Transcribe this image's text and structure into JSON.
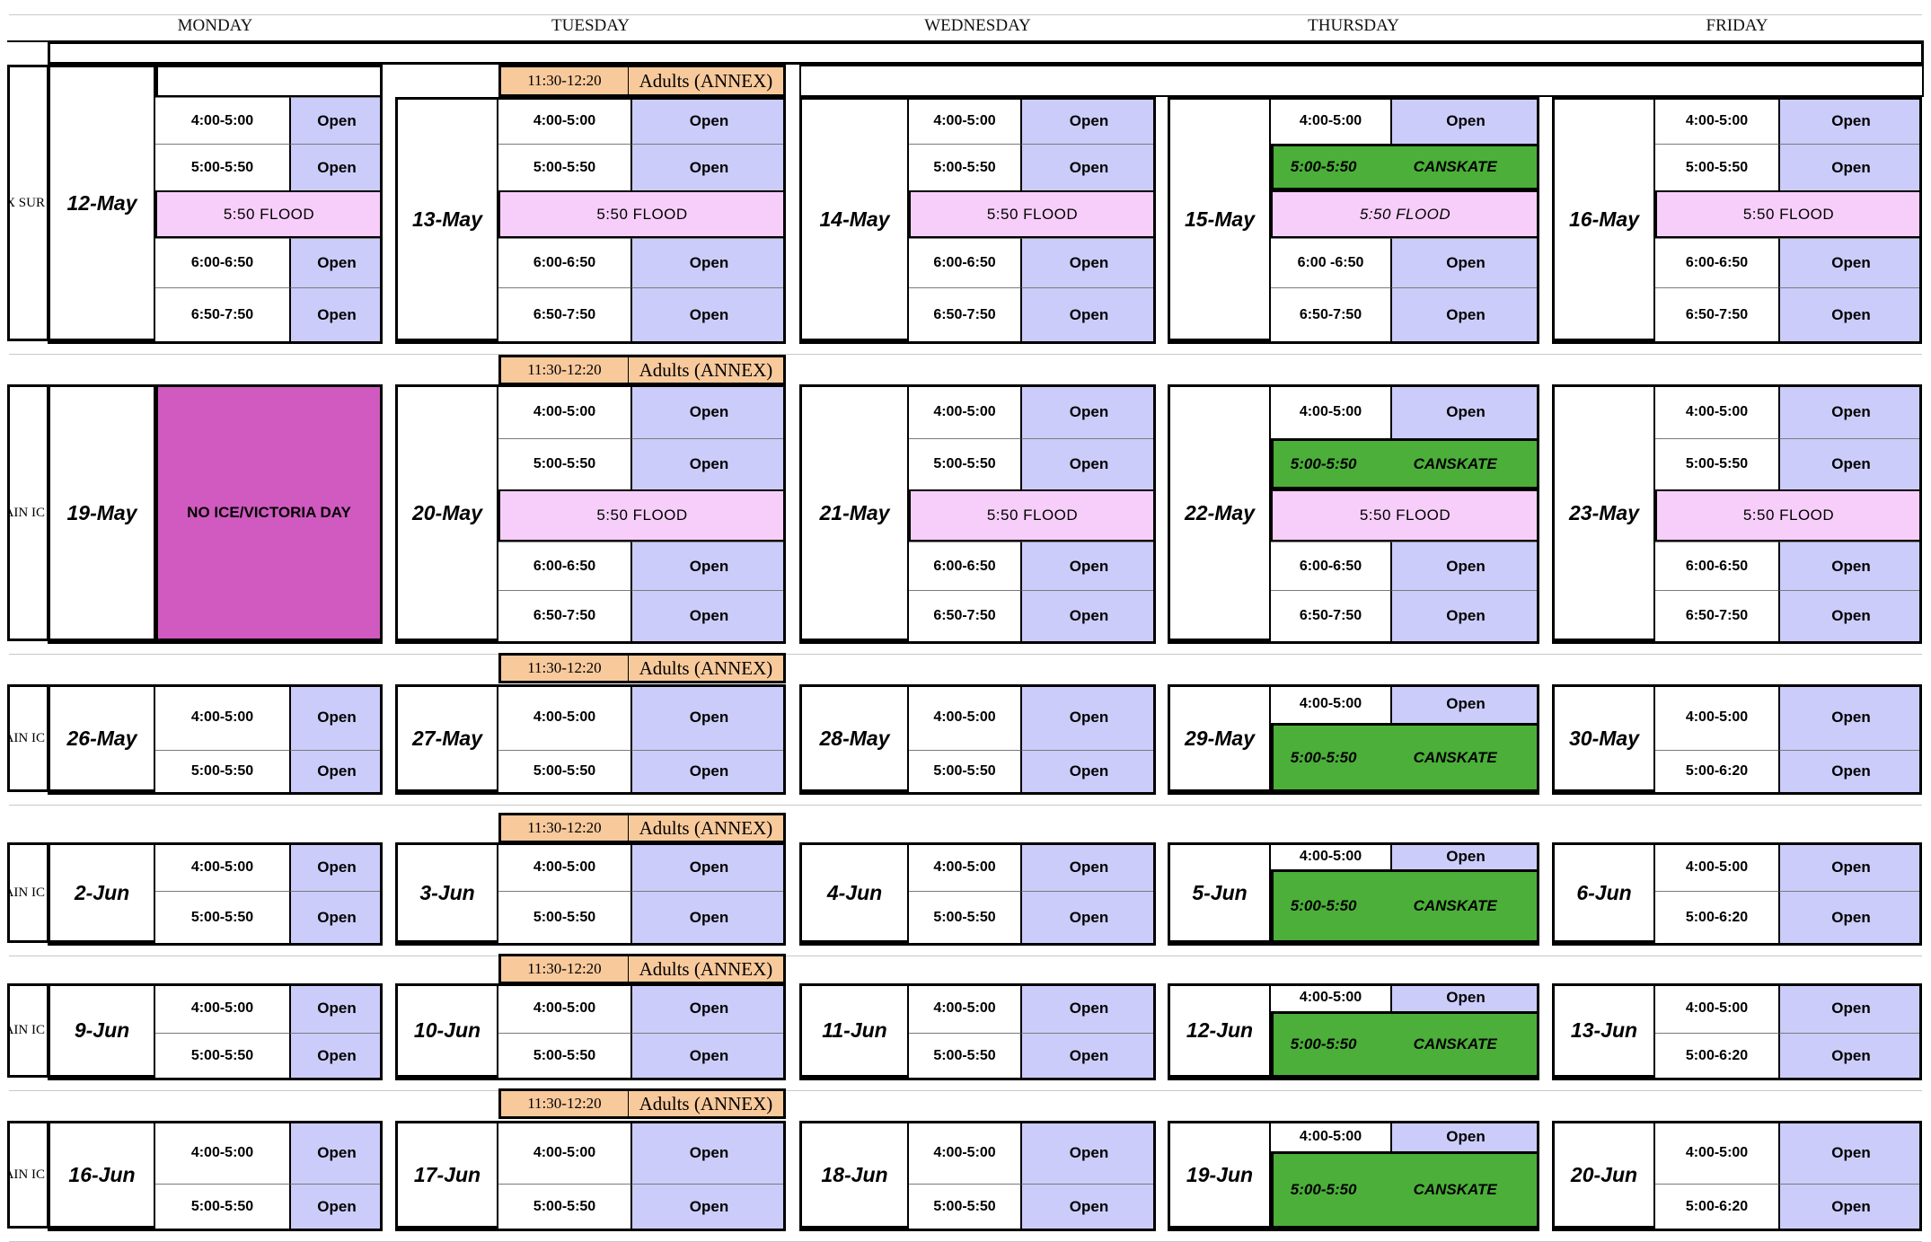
{
  "days": {
    "mon": "MONDAY",
    "tue": "TUESDAY",
    "wed": "WEDNESDAY",
    "thu": "THURSDAY",
    "fri": "FRIDAY"
  },
  "side_labels": [
    "EX SUR",
    "AIN IC",
    "AIN IC",
    "AIN IC",
    "AIN IC",
    "AIN IC"
  ],
  "adults": {
    "time": "11:30-12:20",
    "label": "Adults (ANNEX)"
  },
  "common": {
    "open": "Open",
    "flood": "5:50 FLOOD",
    "canskate_time": "5:00-5:50",
    "canskate_label": "CANSKATE",
    "no_ice": "NO ICE/VICTORIA DAY"
  },
  "weeks": [
    {
      "dates": [
        "12-May",
        "13-May",
        "14-May",
        "15-May",
        "16-May"
      ],
      "times": {
        "mon": [
          "4:00-5:00",
          "5:00-5:50",
          "6:00-6:50",
          "6:50-7:50"
        ],
        "tue": [
          "4:00-5:00",
          "5:00-5:50",
          "6:00-6:50",
          "6:50-7:50"
        ],
        "wed": [
          "4:00-5:00",
          "5:00-5:50",
          "6:00-6:50",
          "6:50-7:50"
        ],
        "thu": [
          "4:00-5:00",
          "6:00 -6:50",
          "6:50-7:50"
        ],
        "fri": [
          "4:00-5:00",
          "5:00-5:50",
          "6:00-6:50",
          "6:50-7:50"
        ]
      }
    },
    {
      "dates": [
        "19-May",
        "20-May",
        "21-May",
        "22-May",
        "23-May"
      ],
      "times": {
        "tue": [
          "4:00-5:00",
          "5:00-5:50",
          "6:00-6:50",
          "6:50-7:50"
        ],
        "wed": [
          "4:00-5:00",
          "5:00-5:50",
          "6:00-6:50",
          "6:50-7:50"
        ],
        "thu": [
          "4:00-5:00",
          "6:00-6:50",
          "6:50-7:50"
        ],
        "fri": [
          "4:00-5:00",
          "5:00-5:50",
          "6:00-6:50",
          "6:50-7:50"
        ]
      }
    },
    {
      "dates": [
        "26-May",
        "27-May",
        "28-May",
        "29-May",
        "30-May"
      ],
      "times": {
        "mon": [
          "4:00-5:00",
          "5:00-5:50"
        ],
        "tue": [
          "4:00-5:00",
          "5:00-5:50"
        ],
        "wed": [
          "4:00-5:00",
          "5:00-5:50"
        ],
        "thu": [
          "4:00-5:00"
        ],
        "fri": [
          "4:00-5:00",
          "5:00-6:20"
        ]
      }
    },
    {
      "dates": [
        "2-Jun",
        "3-Jun",
        "4-Jun",
        "5-Jun",
        "6-Jun"
      ],
      "times": {
        "mon": [
          "4:00-5:00",
          "5:00-5:50"
        ],
        "tue": [
          "4:00-5:00",
          "5:00-5:50"
        ],
        "wed": [
          "4:00-5:00",
          "5:00-5:50"
        ],
        "thu": [
          "4:00-5:00"
        ],
        "fri": [
          "4:00-5:00",
          "5:00-6:20"
        ]
      }
    },
    {
      "dates": [
        "9-Jun",
        "10-Jun",
        "11-Jun",
        "12-Jun",
        "13-Jun"
      ],
      "times": {
        "mon": [
          "4:00-5:00",
          "5:00-5:50"
        ],
        "tue": [
          "4:00-5:00",
          "5:00-5:50"
        ],
        "wed": [
          "4:00-5:00",
          "5:00-5:50"
        ],
        "thu": [
          "4:00-5:00"
        ],
        "fri": [
          "4:00-5:00",
          "5:00-6:20"
        ]
      }
    },
    {
      "dates": [
        "16-Jun",
        "17-Jun",
        "18-Jun",
        "19-Jun",
        "20-Jun"
      ],
      "times": {
        "mon": [
          "4:00-5:00",
          "5:00-5:50"
        ],
        "tue": [
          "4:00-5:00",
          "5:00-5:50"
        ],
        "wed": [
          "4:00-5:00",
          "5:00-5:50"
        ],
        "thu": [
          "4:00-5:00"
        ],
        "fri": [
          "4:00-5:00",
          "5:00-6:20"
        ]
      }
    }
  ]
}
